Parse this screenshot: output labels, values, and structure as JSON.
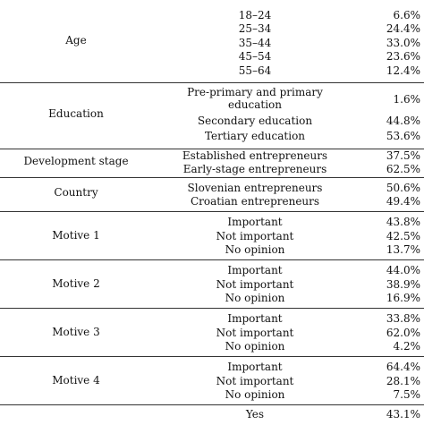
{
  "groups": [
    {
      "label": "Age",
      "rows": [
        {
          "cat": "18–24",
          "val": "6.6%"
        },
        {
          "cat": "25–34",
          "val": "24.4%"
        },
        {
          "cat": "35–44",
          "val": "33.0%"
        },
        {
          "cat": "45–54",
          "val": "23.6%"
        },
        {
          "cat": "55–64",
          "val": "12.4%"
        }
      ]
    },
    {
      "label": "Education",
      "rows": [
        {
          "cat": "Pre-primary and primary education",
          "val": "1.6%"
        },
        {
          "cat": "Secondary education",
          "val": "44.8%"
        },
        {
          "cat": "Tertiary education",
          "val": "53.6%"
        }
      ]
    },
    {
      "label": "Development stage",
      "rows": [
        {
          "cat": "Established entrepreneurs",
          "val": "37.5%"
        },
        {
          "cat": "Early-stage entrepreneurs",
          "val": "62.5%"
        }
      ]
    },
    {
      "label": "Country",
      "rows": [
        {
          "cat": "Slovenian entrepreneurs",
          "val": "50.6%"
        },
        {
          "cat": "Croatian entrepreneurs",
          "val": "49.4%"
        }
      ]
    },
    {
      "label": "Motive 1",
      "rows": [
        {
          "cat": "Important",
          "val": "43.8%"
        },
        {
          "cat": "Not important",
          "val": "42.5%"
        },
        {
          "cat": "No opinion",
          "val": "13.7%"
        }
      ]
    },
    {
      "label": "Motive 2",
      "rows": [
        {
          "cat": "Important",
          "val": "44.0%"
        },
        {
          "cat": "Not important",
          "val": "38.9%"
        },
        {
          "cat": "No opinion",
          "val": "16.9%"
        }
      ]
    },
    {
      "label": "Motive 3",
      "rows": [
        {
          "cat": "Important",
          "val": "33.8%"
        },
        {
          "cat": "Not important",
          "val": "62.0%"
        },
        {
          "cat": "No opinion",
          "val": "4.2%"
        }
      ]
    },
    {
      "label": "Motive 4",
      "rows": [
        {
          "cat": "Important",
          "val": "64.4%"
        },
        {
          "cat": "Not important",
          "val": "28.1%"
        },
        {
          "cat": "No opinion",
          "val": "7.5%"
        }
      ]
    },
    {
      "label": "",
      "rows": [
        {
          "cat": "Yes",
          "val": "43.1%"
        }
      ]
    }
  ]
}
